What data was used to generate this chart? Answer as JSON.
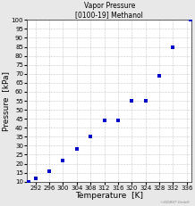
{
  "title_line1": "Vapor Pressure",
  "title_line2": "[0100-19] Methanol",
  "xlabel": "Temperature  [K]",
  "ylabel": "Pressure  [kPa]",
  "xlim": [
    289.5,
    337.5
  ],
  "ylim": [
    10,
    100
  ],
  "xticks": [
    292,
    296,
    300,
    304,
    308,
    312,
    316,
    320,
    324,
    328,
    332,
    336
  ],
  "yticks": [
    10,
    15,
    20,
    25,
    30,
    35,
    40,
    45,
    50,
    55,
    60,
    65,
    70,
    75,
    80,
    85,
    90,
    95,
    100
  ],
  "data_points": [
    [
      290,
      10
    ],
    [
      292,
      12
    ],
    [
      296,
      16
    ],
    [
      300,
      22
    ],
    [
      304,
      28
    ],
    [
      308,
      35
    ],
    [
      312,
      44
    ],
    [
      316,
      44
    ],
    [
      320,
      55
    ],
    [
      324,
      55
    ],
    [
      328,
      69
    ],
    [
      332,
      85
    ],
    [
      337,
      100
    ]
  ],
  "point_color": "#0000cc",
  "point_size": 5,
  "background_color": "#e8e8e8",
  "plot_bg_color": "#ffffff",
  "grid_color": "#999999",
  "title_fontsize": 5.5,
  "axis_label_fontsize": 6.5,
  "tick_fontsize": 5,
  "watermark": "©DDBST GmbH"
}
